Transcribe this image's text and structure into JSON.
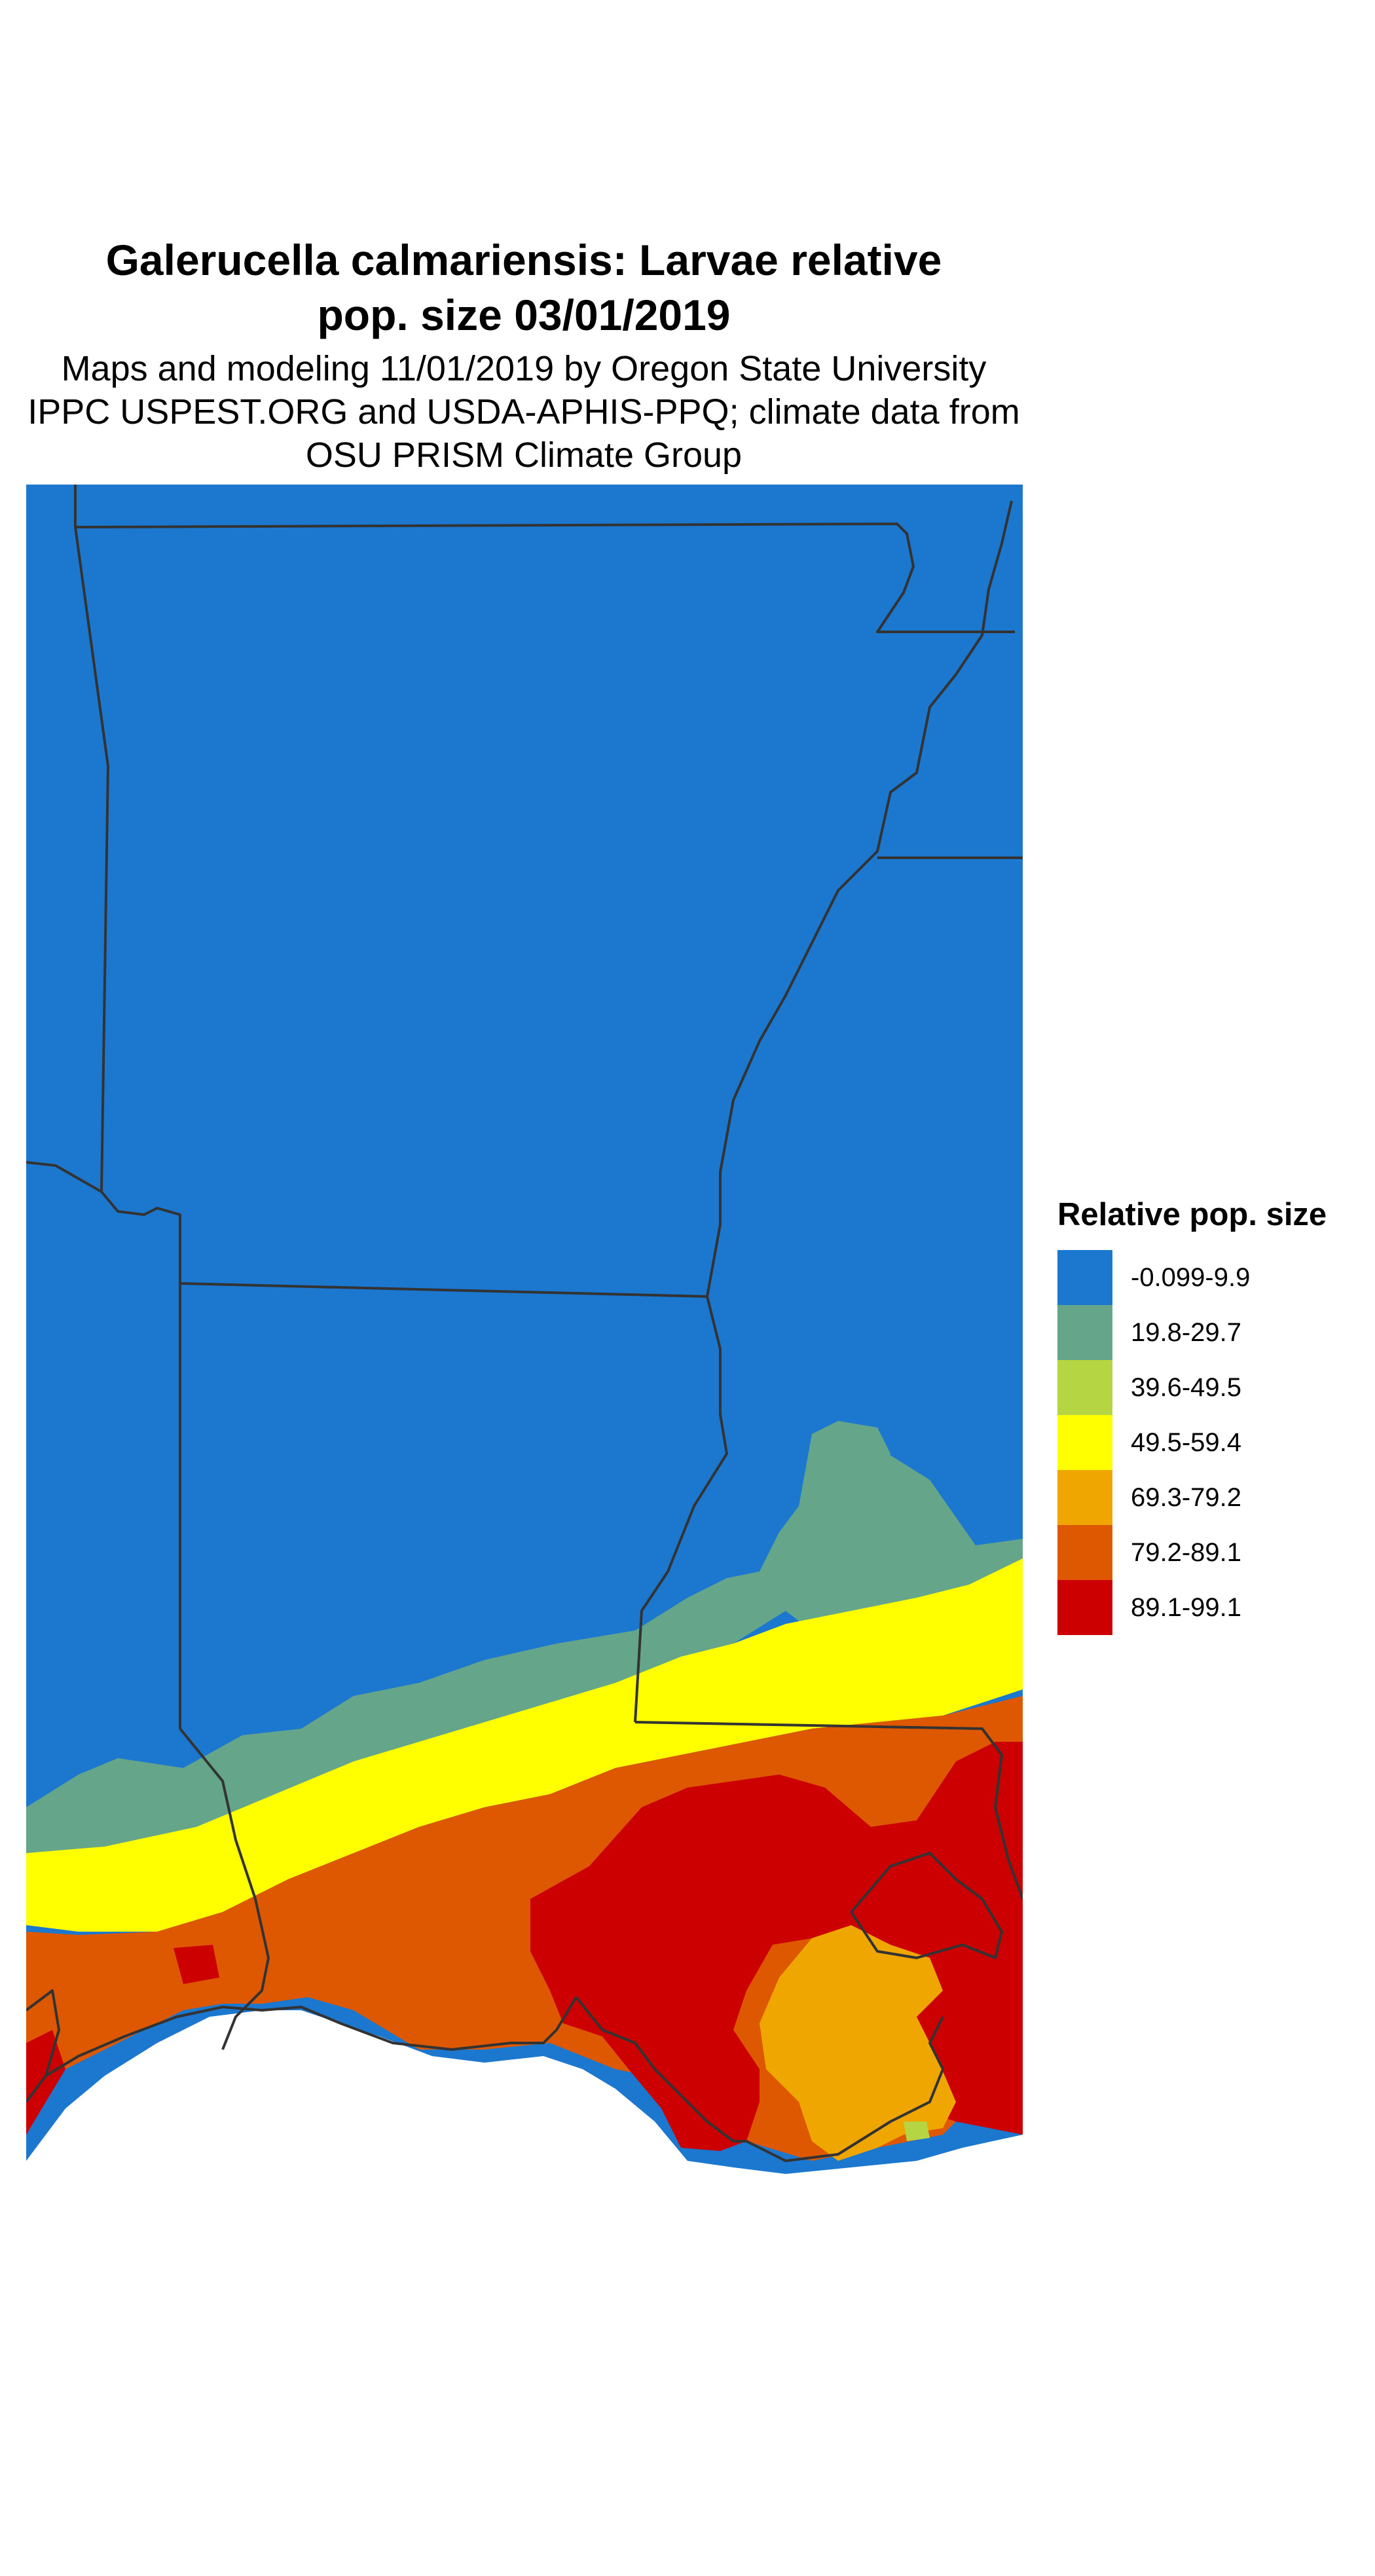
{
  "header": {
    "title_line1": "Galerucella calmariensis: Larvae relative",
    "title_line2": "pop. size 03/01/2019",
    "subtitle_line1": "Maps and modeling 11/01/2019 by Oregon State University",
    "subtitle_line2": "IPPC USPEST.ORG and USDA-APHIS-PPQ; climate data from",
    "subtitle_line3": "OSU PRISM Climate Group"
  },
  "legend": {
    "title": "Relative pop. size",
    "items": [
      {
        "label": "-0.099-9.9",
        "color": "#1c77cf"
      },
      {
        "label": "19.8-29.7",
        "color": "#65a58a"
      },
      {
        "label": "39.6-49.5",
        "color": "#b5d542"
      },
      {
        "label": "49.5-59.4",
        "color": "#ffff00"
      },
      {
        "label": "69.3-79.2",
        "color": "#efa600"
      },
      {
        "label": "79.2-89.1",
        "color": "#dd5800"
      },
      {
        "label": "89.1-99.1",
        "color": "#cc0000"
      }
    ]
  },
  "map": {
    "colors": {
      "ocean": "#ffffff",
      "border": "#333333"
    }
  }
}
